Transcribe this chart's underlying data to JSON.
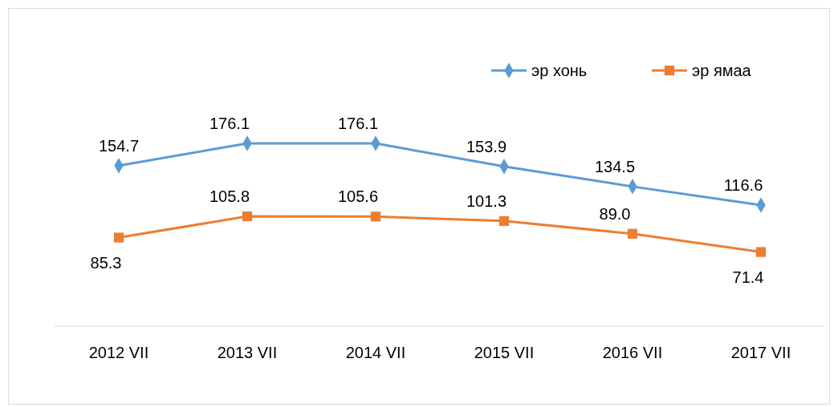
{
  "chart_data": {
    "type": "line",
    "categories": [
      "2012 VII",
      "2013 VII",
      "2014 VII",
      "2015 VII",
      "2016 VII",
      "2017 VII"
    ],
    "series": [
      {
        "name": "эр хонь",
        "color": "#5b9bd5",
        "values": [
          154.7,
          176.1,
          176.1,
          153.9,
          134.5,
          116.6
        ],
        "value_labels": [
          "154.7",
          "176.1",
          "176.1",
          "153.9",
          "134.5",
          "116.6"
        ],
        "marker": "diamond"
      },
      {
        "name": "эр ямаа",
        "color": "#ed7d31",
        "values": [
          85.3,
          105.8,
          105.6,
          101.3,
          89.0,
          71.4
        ],
        "value_labels": [
          "85.3",
          "105.8",
          "105.6",
          "101.3",
          "89.0",
          "71.4"
        ],
        "marker": "square"
      }
    ],
    "tick_labels": "x",
    "legend": "top right"
  }
}
